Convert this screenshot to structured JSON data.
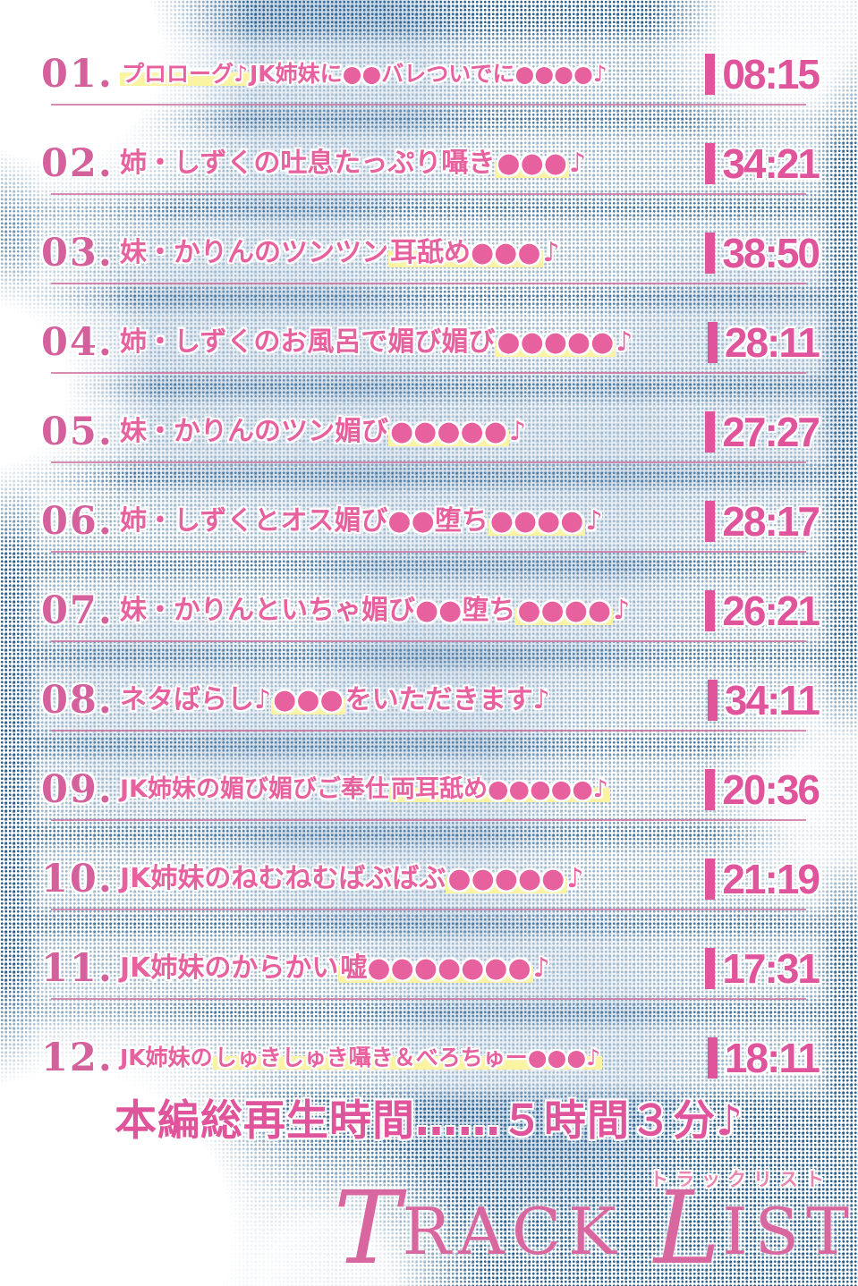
{
  "colors": {
    "accent_pink": "#e0549c",
    "title_pink": "#e7619f",
    "number_pink": "#d4609c",
    "divider_pink": "#cf6f9e",
    "highlight_yellow": "#faf3a0",
    "serif_pink": "#d9679f",
    "subtitle_pink": "#e884ad",
    "halftone_navy": "#124d7d"
  },
  "tracks": [
    {
      "number": "01.",
      "time": "08:15",
      "segments": [
        {
          "text": "プロローグ♪",
          "hl": true
        },
        {
          "text": "JK姉妹に●●バレついでに●●●●♪",
          "hl": false
        }
      ]
    },
    {
      "number": "02.",
      "time": "34:21",
      "segments": [
        {
          "text": "姉・しずくの吐息たっぷり囁き",
          "hl": false
        },
        {
          "text": "●●●",
          "hl": true
        },
        {
          "text": "♪",
          "hl": false
        }
      ]
    },
    {
      "number": "03.",
      "time": "38:50",
      "segments": [
        {
          "text": "妹・かりんのツンツン",
          "hl": false
        },
        {
          "text": "耳舐め●●●",
          "hl": true
        },
        {
          "text": "♪",
          "hl": false
        }
      ]
    },
    {
      "number": "04.",
      "time": "28:11",
      "segments": [
        {
          "text": "姉・しずくのお風呂で媚び媚び",
          "hl": false
        },
        {
          "text": "●●●●●",
          "hl": true
        },
        {
          "text": "♪",
          "hl": false
        }
      ]
    },
    {
      "number": "05.",
      "time": "27:27",
      "segments": [
        {
          "text": "妹・かりんのツン媚び",
          "hl": false
        },
        {
          "text": "●●●●●",
          "hl": true
        },
        {
          "text": "♪",
          "hl": false
        }
      ]
    },
    {
      "number": "06.",
      "time": "28:17",
      "segments": [
        {
          "text": "姉・しずくとオス媚び●●堕ち",
          "hl": false
        },
        {
          "text": "●●●●",
          "hl": true
        },
        {
          "text": "♪",
          "hl": false
        }
      ]
    },
    {
      "number": "07.",
      "time": "26:21",
      "segments": [
        {
          "text": "妹・かりんといちゃ媚び●●堕ち",
          "hl": false
        },
        {
          "text": "●●●●",
          "hl": true
        },
        {
          "text": "♪",
          "hl": false
        }
      ]
    },
    {
      "number": "08.",
      "time": "34:11",
      "segments": [
        {
          "text": "ネタばらし♪",
          "hl": false
        },
        {
          "text": "●●●",
          "hl": true
        },
        {
          "text": "をいただきます♪",
          "hl": false
        }
      ]
    },
    {
      "number": "09.",
      "time": "20:36",
      "segments": [
        {
          "text": "JK姉妹の媚び媚びご奉仕",
          "hl": false
        },
        {
          "text": "両耳舐め●●●●●♪",
          "hl": true
        }
      ]
    },
    {
      "number": "10.",
      "time": "21:19",
      "segments": [
        {
          "text": "JK姉妹のねむねむばぶばぶ",
          "hl": false
        },
        {
          "text": "●●●●●",
          "hl": true
        },
        {
          "text": "♪",
          "hl": false
        }
      ]
    },
    {
      "number": "11.",
      "time": "17:31",
      "segments": [
        {
          "text": "JK姉妹のからかい",
          "hl": false
        },
        {
          "text": "嘘●●●●●●●",
          "hl": true
        },
        {
          "text": "♪",
          "hl": false
        }
      ]
    },
    {
      "number": "12.",
      "time": "18:11",
      "segments": [
        {
          "text": "JK姉妹の",
          "hl": false
        },
        {
          "text": "しゅきしゅき囁き＆べろちゅー●●●♪",
          "hl": true
        }
      ]
    }
  ],
  "footer": {
    "total_runtime": "本編総再生時間……５時間３分♪",
    "subtitle_jp": "トラックリスト",
    "title_en": {
      "t_initial": "T",
      "t_rest": "RACK",
      "l_initial": "L",
      "l_rest": "IST"
    }
  }
}
